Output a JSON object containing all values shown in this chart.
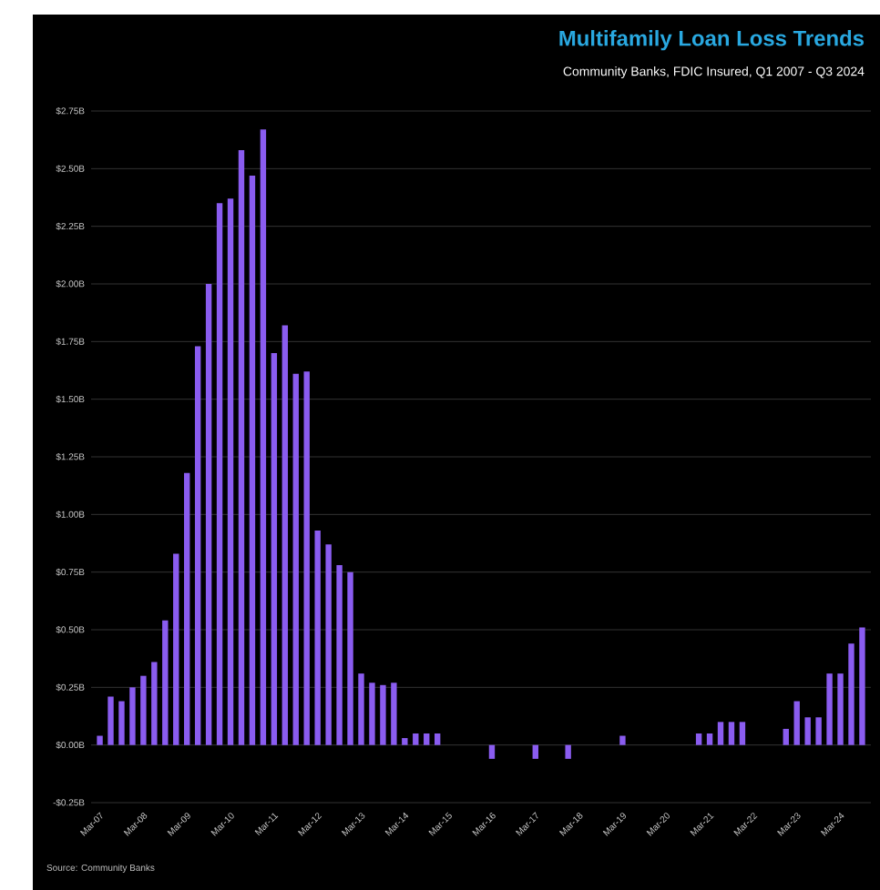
{
  "chart_data": {
    "type": "bar",
    "title": "Multifamily Loan Loss Trends",
    "subtitle": "Community Banks, FDIC Insured, Q1 2007 - Q3 2024",
    "categories": [
      "Mar-07",
      null,
      null,
      null,
      "Mar-08",
      null,
      null,
      null,
      "Mar-09",
      null,
      null,
      null,
      "Mar-10",
      null,
      null,
      null,
      "Mar-11",
      null,
      null,
      null,
      "Mar-12",
      null,
      null,
      null,
      "Mar-13",
      null,
      null,
      null,
      "Mar-14",
      null,
      null,
      null,
      "Mar-15",
      null,
      null,
      null,
      "Mar-16",
      null,
      null,
      null,
      "Mar-17",
      null,
      null,
      null,
      "Mar-18",
      null,
      null,
      null,
      "Mar-19",
      null,
      null,
      null,
      "Mar-20",
      null,
      null,
      null,
      "Mar-21",
      null,
      null,
      null,
      "Mar-22",
      null,
      null,
      null,
      "Mar-23",
      null,
      null,
      null,
      "Mar-24",
      null,
      null
    ],
    "values": [
      0.04,
      0.21,
      0.19,
      0.25,
      0.3,
      0.36,
      0.54,
      0.83,
      1.18,
      1.73,
      2.0,
      2.35,
      2.37,
      2.58,
      2.47,
      2.67,
      1.7,
      1.82,
      1.61,
      1.62,
      0.93,
      0.87,
      0.78,
      0.75,
      0.31,
      0.27,
      0.26,
      0.27,
      0.03,
      0.05,
      0.05,
      0.05,
      0,
      0,
      0,
      0,
      -0.06,
      0,
      0,
      0,
      -0.06,
      0,
      0,
      -0.06,
      0,
      0,
      0,
      0,
      0.04,
      0,
      0,
      0,
      0,
      0,
      0,
      0.05,
      0.05,
      0.1,
      0.1,
      0.1,
      0,
      0,
      0,
      0.07,
      0.19,
      0.12,
      0.12,
      0.31,
      0.31,
      0.44,
      0.51
    ],
    "color": "#8a5cf0",
    "ylim": [
      -0.25,
      2.75
    ],
    "yticks": [
      {
        "value": -0.25,
        "label": "-$0.25B"
      },
      {
        "value": 0,
        "label": "$0.00B"
      },
      {
        "value": 0.25,
        "label": "$0.25B"
      },
      {
        "value": 0.5,
        "label": "$0.50B"
      },
      {
        "value": 0.75,
        "label": "$0.75B"
      },
      {
        "value": 1,
        "label": "$1.00B"
      },
      {
        "value": 1.25,
        "label": "$1.25B"
      },
      {
        "value": 1.5,
        "label": "$1.50B"
      },
      {
        "value": 1.75,
        "label": "$1.75B"
      },
      {
        "value": 2,
        "label": "$2.00B"
      },
      {
        "value": 2.25,
        "label": "$2.25B"
      },
      {
        "value": 2.5,
        "label": "$2.50B"
      },
      {
        "value": 2.75,
        "label": "$2.75B"
      }
    ],
    "grid": "y",
    "annotations": [
      "Source: Community Banks"
    ]
  }
}
